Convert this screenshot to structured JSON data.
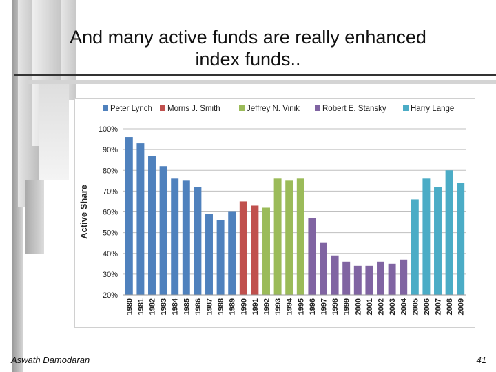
{
  "slide": {
    "title_line1": "And many active funds are really enhanced",
    "title_line2": "index funds..",
    "author": "Aswath Damodaran",
    "page_number": "41"
  },
  "chart_data": {
    "type": "bar",
    "title": "",
    "xlabel": "",
    "ylabel": "Active Share",
    "ylim": [
      20,
      100
    ],
    "yticks": [
      "20%",
      "30%",
      "40%",
      "50%",
      "60%",
      "70%",
      "80%",
      "90%",
      "100%"
    ],
    "grid": true,
    "legend_position": "top",
    "categories": [
      "1980",
      "1981",
      "1982",
      "1983",
      "1984",
      "1985",
      "1986",
      "1987",
      "1988",
      "1989",
      "1990",
      "1991",
      "1992",
      "1993",
      "1994",
      "1995",
      "1996",
      "1997",
      "1998",
      "1999",
      "2000",
      "2001",
      "2002",
      "2003",
      "2004",
      "2005",
      "2006",
      "2007",
      "2008",
      "2009"
    ],
    "series": [
      {
        "name": "Peter Lynch",
        "color": "#4f81bd",
        "values": [
          96,
          93,
          87,
          82,
          76,
          75,
          72,
          59,
          56,
          60,
          null,
          null,
          null,
          null,
          null,
          null,
          null,
          null,
          null,
          null,
          null,
          null,
          null,
          null,
          null,
          null,
          null,
          null,
          null,
          null
        ]
      },
      {
        "name": "Morris J. Smith",
        "color": "#c0504d",
        "values": [
          null,
          null,
          null,
          null,
          null,
          null,
          null,
          null,
          null,
          null,
          65,
          63,
          null,
          null,
          null,
          null,
          null,
          null,
          null,
          null,
          null,
          null,
          null,
          null,
          null,
          null,
          null,
          null,
          null,
          null
        ]
      },
      {
        "name": "Jeffrey N. Vinik",
        "color": "#9bbb59",
        "values": [
          null,
          null,
          null,
          null,
          null,
          null,
          null,
          null,
          null,
          null,
          null,
          null,
          62,
          76,
          75,
          76,
          null,
          null,
          null,
          null,
          null,
          null,
          null,
          null,
          null,
          null,
          null,
          null,
          null,
          null
        ]
      },
      {
        "name": "Robert E. Stansky",
        "color": "#8064a2",
        "values": [
          null,
          null,
          null,
          null,
          null,
          null,
          null,
          null,
          null,
          null,
          null,
          null,
          null,
          null,
          null,
          null,
          57,
          45,
          39,
          36,
          34,
          34,
          36,
          35,
          37,
          null,
          null,
          null,
          null,
          null
        ]
      },
      {
        "name": "Harry Lange",
        "color": "#4bacc6",
        "values": [
          null,
          null,
          null,
          null,
          null,
          null,
          null,
          null,
          null,
          null,
          null,
          null,
          null,
          null,
          null,
          null,
          null,
          null,
          null,
          null,
          null,
          null,
          null,
          null,
          null,
          66,
          76,
          72,
          80,
          74
        ]
      }
    ]
  }
}
